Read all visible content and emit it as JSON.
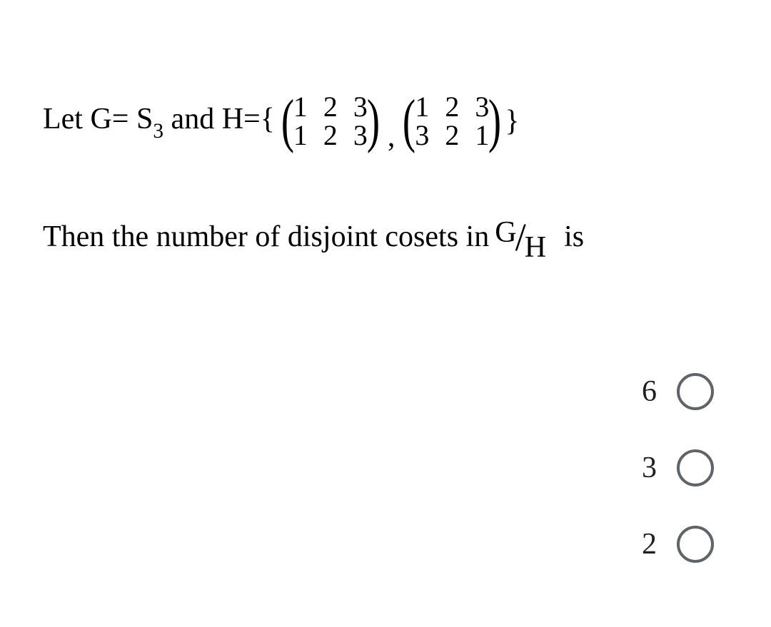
{
  "question": {
    "line1_prefix": "Let G= S",
    "line1_sub": "3",
    "line1_mid": " and H={",
    "matrices": [
      {
        "row1": [
          "1",
          "2",
          "3"
        ],
        "row2": [
          "1",
          "2",
          "3"
        ]
      },
      {
        "row1": [
          "1",
          "2",
          "3"
        ],
        "row2": [
          "3",
          "2",
          "1"
        ]
      }
    ],
    "separator": ",",
    "line1_suffix": "}",
    "line2_prefix": "Then the number of disjoint cosets in ",
    "frac_num": "G",
    "frac_den": "H",
    "line2_suffix": "  is"
  },
  "options": [
    {
      "label": "6"
    },
    {
      "label": "3"
    },
    {
      "label": "2"
    }
  ],
  "colors": {
    "background": "#ffffff",
    "text": "#000000",
    "option_text": "#202124",
    "radio_border": "#5f6469"
  },
  "typography": {
    "question_fontsize": 42,
    "option_fontsize": 42,
    "font_family": "Times New Roman"
  }
}
